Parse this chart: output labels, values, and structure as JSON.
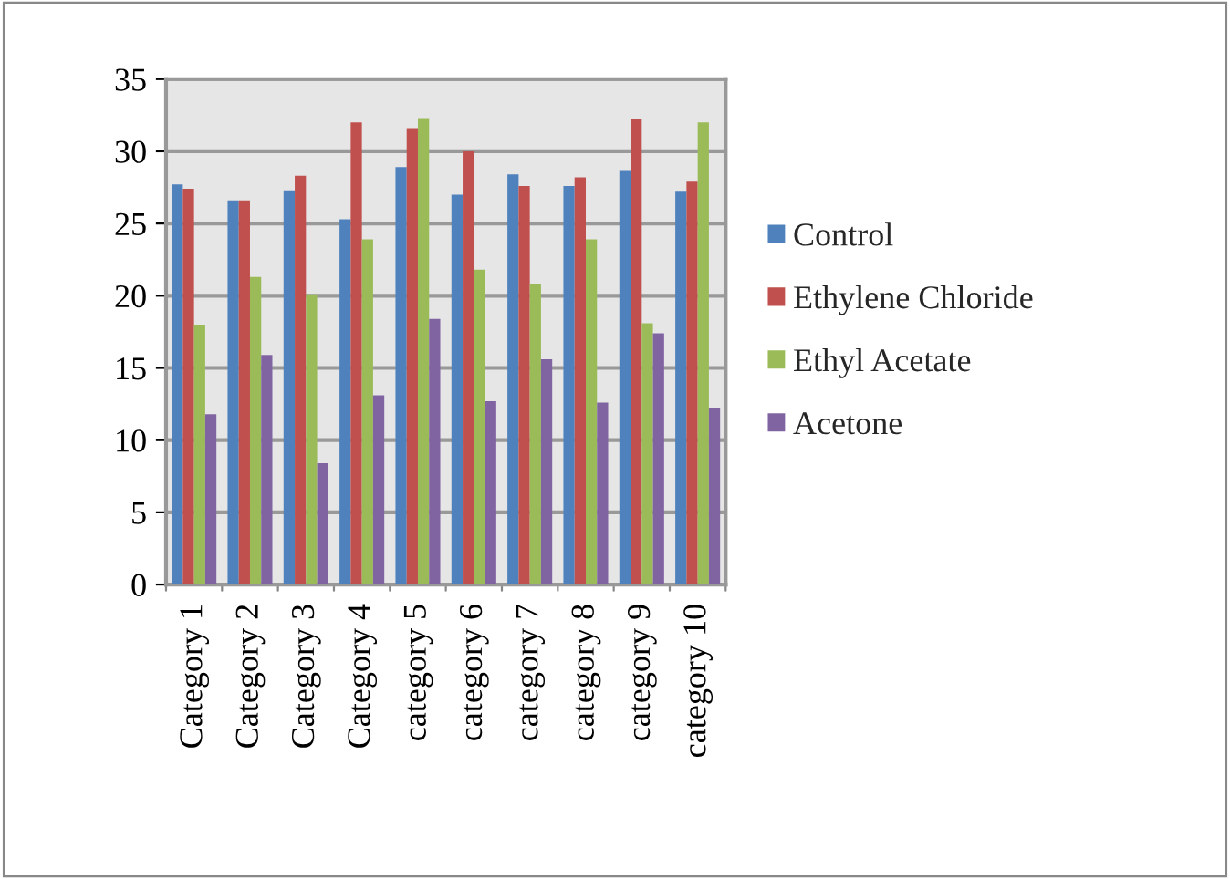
{
  "chart_data": {
    "type": "bar",
    "categories": [
      "Category 1",
      "Category 2",
      "Category 3",
      "Category 4",
      "category 5",
      "category 6",
      "category 7",
      "category 8",
      "category 9",
      "category 10"
    ],
    "series": [
      {
        "name": "Control",
        "color": "#4f81bd",
        "values": [
          27.7,
          26.6,
          27.3,
          25.3,
          28.9,
          27.0,
          28.4,
          27.6,
          28.7,
          27.2
        ]
      },
      {
        "name": "Ethylene Chloride",
        "color": "#c0504d",
        "values": [
          27.4,
          26.6,
          28.3,
          32.0,
          31.6,
          30.0,
          27.6,
          28.2,
          32.2,
          27.9
        ]
      },
      {
        "name": "Ethyl Acetate",
        "color": "#9bbb59",
        "values": [
          18.0,
          21.3,
          20.1,
          23.9,
          32.3,
          21.8,
          20.8,
          23.9,
          18.1,
          32.0
        ]
      },
      {
        "name": "Acetone",
        "color": "#8064a2",
        "values": [
          11.8,
          15.9,
          8.4,
          13.1,
          18.4,
          12.7,
          15.6,
          12.6,
          17.4,
          12.2
        ]
      }
    ],
    "ylim": [
      0,
      35
    ],
    "yticks": [
      0,
      5,
      10,
      15,
      20,
      25,
      30,
      35
    ],
    "grid": "y",
    "legend": "right"
  }
}
